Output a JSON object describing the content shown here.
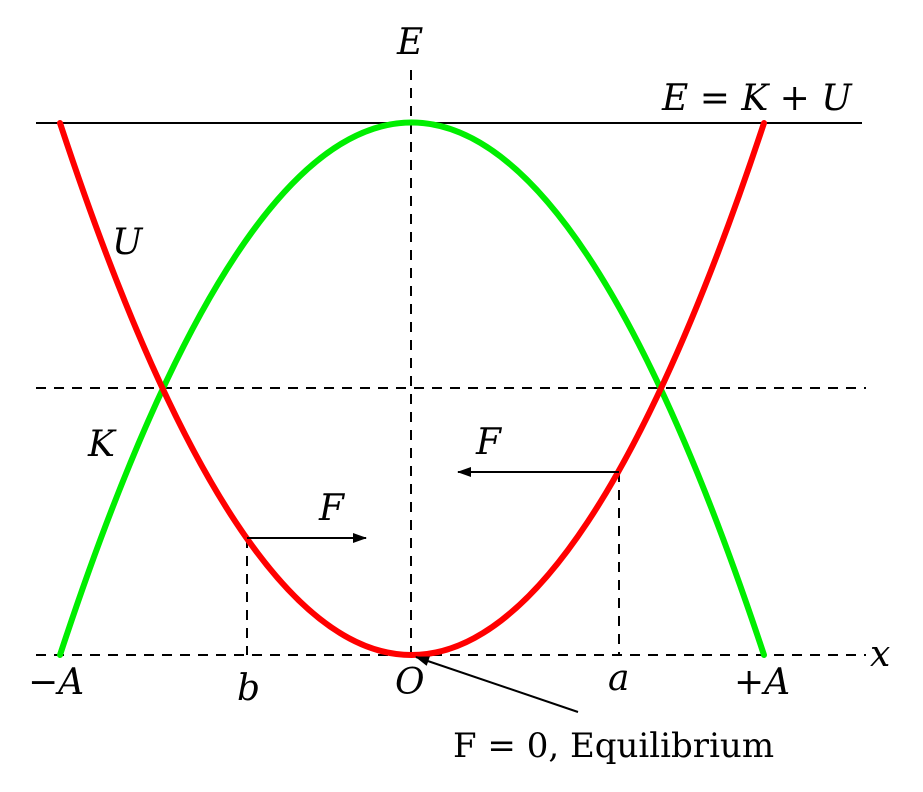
{
  "colors": {
    "potential_curve": "#ff0000",
    "kinetic_curve": "#00ee00",
    "lines": "#000000"
  },
  "labels": {
    "energy_axis": "E",
    "position_axis": "x",
    "total_energy": "E = K + U",
    "potential_curve": "U",
    "kinetic_curve": "K",
    "force_left": "F",
    "force_right": "F",
    "origin": "O",
    "minus_amplitude": "−A",
    "plus_amplitude": "+A",
    "point_b": "b",
    "point_a": "a",
    "equilibrium_note": "F = 0, Equilibrium"
  }
}
